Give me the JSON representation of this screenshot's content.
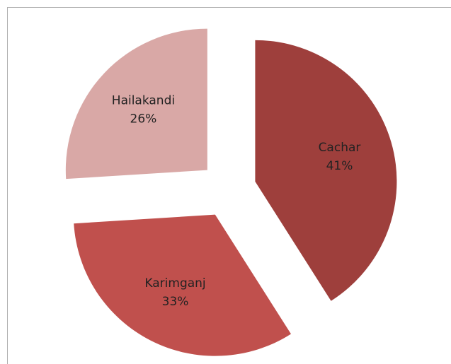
{
  "chart_data": {
    "type": "pie",
    "categories": [
      "Cachar",
      "Karimganj",
      "Hailakandi"
    ],
    "values": [
      41,
      33,
      26
    ],
    "value_labels": [
      "41%",
      "33%",
      "26%"
    ],
    "colors": [
      "#9e3f3c",
      "#c0504d",
      "#d9a8a6"
    ],
    "exploded": true
  }
}
